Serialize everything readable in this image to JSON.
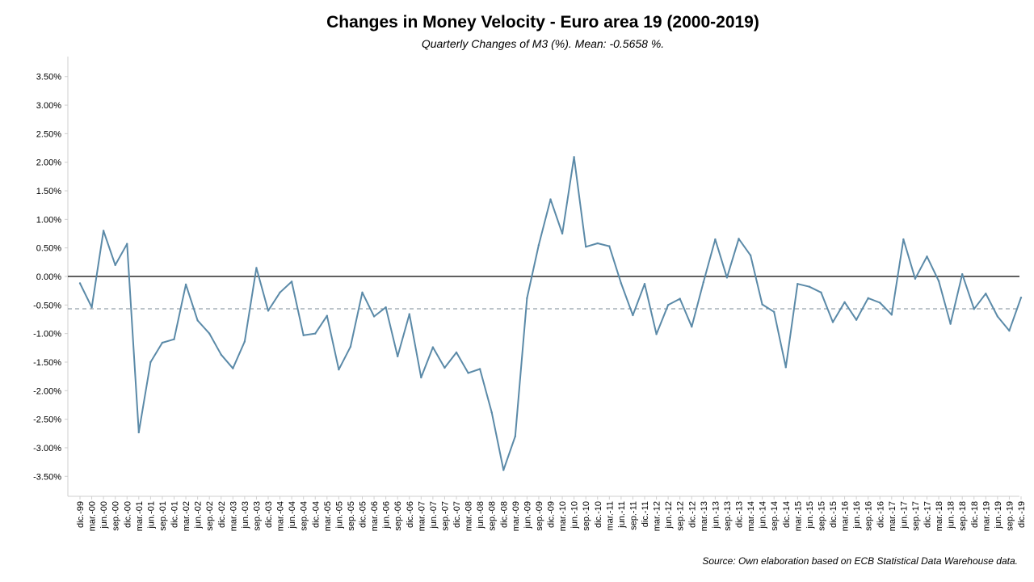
{
  "chart_data": {
    "type": "line",
    "title": "Changes in Money Velocity - Euro area 19 (2000-2019)",
    "subtitle": "Quarterly Changes of M3 (%). Mean:  -0.5658 %.",
    "source": "Source: Own elaboration based on ECB Statistical Data Warehouse data.",
    "ylim": [
      -3.85,
      3.85
    ],
    "y_ticks": [
      "3.50%",
      "3.00%",
      "2.50%",
      "2.00%",
      "1.50%",
      "1.00%",
      "0.50%",
      "0.00%",
      "-0.50%",
      "-1.00%",
      "-1.50%",
      "-2.00%",
      "-2.50%",
      "-3.00%",
      "-3.50%"
    ],
    "y_tick_values": [
      3.5,
      3.0,
      2.5,
      2.0,
      1.5,
      1.0,
      0.5,
      0.0,
      -0.5,
      -1.0,
      -1.5,
      -2.0,
      -2.5,
      -3.0,
      -3.5
    ],
    "x_labels": [
      "dic.-99",
      "mar.-00",
      "jun.-00",
      "sep.-00",
      "dic.-00",
      "mar.-01",
      "jun.-01",
      "sep.-01",
      "dic.-01",
      "mar.-02",
      "jun.-02",
      "sep.-02",
      "dic.-02",
      "mar.-03",
      "jun.-03",
      "sep.-03",
      "dic.-03",
      "mar.-04",
      "jun.-04",
      "sep.-04",
      "dic.-04",
      "mar.-05",
      "jun.-05",
      "sep.-05",
      "dic.-05",
      "mar.-06",
      "jun.-06",
      "sep.-06",
      "dic.-06",
      "mar.-07",
      "jun.-07",
      "sep.-07",
      "dic.-07",
      "mar.-08",
      "jun.-08",
      "sep.-08",
      "dic.-08",
      "mar.-09",
      "jun.-09",
      "sep.-09",
      "dic.-09",
      "mar.-10",
      "jun.-10",
      "sep.-10",
      "dic.-10",
      "mar.-11",
      "jun.-11",
      "sep.-11",
      "dic.-11",
      "mar.-12",
      "jun.-12",
      "sep.-12",
      "dic.-12",
      "mar.-13",
      "jun.-13",
      "sep.-13",
      "dic.-13",
      "mar.-14",
      "jun.-14",
      "sep.-14",
      "dic.-14",
      "mar.-15",
      "jun.-15",
      "sep.-15",
      "dic.-15",
      "mar.-16",
      "jun.-16",
      "sep.-16",
      "dic.-16",
      "mar.-17",
      "jun.-17",
      "sep.-17",
      "dic.-17",
      "mar.-18",
      "jun.-18",
      "sep.-18",
      "dic.-18",
      "mar.-19",
      "jun.-19",
      "sep.-19",
      "dic.-19"
    ],
    "series": [
      {
        "values": [
          -0.12,
          -0.54,
          0.8,
          0.2,
          0.57,
          -2.73,
          -1.5,
          -1.16,
          -1.1,
          -0.14,
          -0.77,
          -1.0,
          -1.37,
          -1.61,
          -1.14,
          0.15,
          -0.6,
          -0.28,
          -0.09,
          -1.03,
          -1.0,
          -0.69,
          -1.63,
          -1.23,
          -0.28,
          -0.7,
          -0.54,
          -1.4,
          -0.66,
          -1.77,
          -1.24,
          -1.6,
          -1.33,
          -1.69,
          -1.62,
          -2.38,
          -3.39,
          -2.8,
          -0.38,
          0.55,
          1.35,
          0.75,
          2.09,
          0.52,
          0.58,
          0.53,
          -0.12,
          -0.68,
          -0.13,
          -1.01,
          -0.5,
          -0.39,
          -0.88,
          -0.1,
          0.65,
          -0.02,
          0.66,
          0.37,
          -0.49,
          -0.62,
          -1.59,
          -0.13,
          -0.18,
          -0.28,
          -0.8,
          -0.45,
          -0.76,
          -0.38,
          -0.46,
          -0.67,
          0.65,
          -0.04,
          0.35,
          -0.08,
          -0.83,
          0.04,
          -0.57,
          -0.3,
          -0.7,
          -0.95,
          -0.37
        ],
        "color": "#5b8aa8"
      }
    ],
    "mean_value": -0.5658,
    "zero_line_color": "#000000",
    "mean_line_color": "#7a8a96",
    "grid": false,
    "legend": "none"
  }
}
